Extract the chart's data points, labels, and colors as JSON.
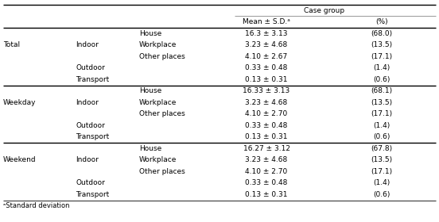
{
  "header_top": "Case group",
  "header_sub1": "Mean ± S.D.ᵃ",
  "header_sub2": "(%)",
  "footnote": "ᵃStandard deviation",
  "sections": [
    {
      "label": "Total",
      "rows": [
        {
          "col1": "",
          "col2": "House",
          "mean_sd": "16.3 ± 3.13",
          "pct": "(68.0)"
        },
        {
          "col1": "Indoor",
          "col2": "Workplace",
          "mean_sd": "3.23 ± 4.68",
          "pct": "(13.5)"
        },
        {
          "col1": "",
          "col2": "Other places",
          "mean_sd": "4.10 ± 2.67",
          "pct": "(17.1)"
        },
        {
          "col1": "Outdoor",
          "col2": "",
          "mean_sd": "0.33 ± 0.48",
          "pct": "(1.4)"
        },
        {
          "col1": "Transport",
          "col2": "",
          "mean_sd": "0.13 ± 0.31",
          "pct": "(0.6)"
        }
      ]
    },
    {
      "label": "Weekday",
      "rows": [
        {
          "col1": "",
          "col2": "House",
          "mean_sd": "16.33 ± 3.13",
          "pct": "(68.1)"
        },
        {
          "col1": "Indoor",
          "col2": "Workplace",
          "mean_sd": "3.23 ± 4.68",
          "pct": "(13.5)"
        },
        {
          "col1": "",
          "col2": "Other places",
          "mean_sd": "4.10 ± 2.70",
          "pct": "(17.1)"
        },
        {
          "col1": "Outdoor",
          "col2": "",
          "mean_sd": "0.33 ± 0.48",
          "pct": "(1.4)"
        },
        {
          "col1": "Transport",
          "col2": "",
          "mean_sd": "0.13 ± 0.31",
          "pct": "(0.6)"
        }
      ]
    },
    {
      "label": "Weekend",
      "rows": [
        {
          "col1": "",
          "col2": "House",
          "mean_sd": "16.27 ± 3.12",
          "pct": "(67.8)"
        },
        {
          "col1": "Indoor",
          "col2": "Workplace",
          "mean_sd": "3.23 ± 4.68",
          "pct": "(13.5)"
        },
        {
          "col1": "",
          "col2": "Other places",
          "mean_sd": "4.10 ± 2.70",
          "pct": "(17.1)"
        },
        {
          "col1": "Outdoor",
          "col2": "",
          "mean_sd": "0.33 ± 0.48",
          "pct": "(1.4)"
        },
        {
          "col1": "Transport",
          "col2": "",
          "mean_sd": "0.13 ± 0.31",
          "pct": "(0.6)"
        }
      ]
    }
  ],
  "font_size": 6.5,
  "line_color": "#888888",
  "thick_lw": 1.0,
  "thin_lw": 0.6
}
